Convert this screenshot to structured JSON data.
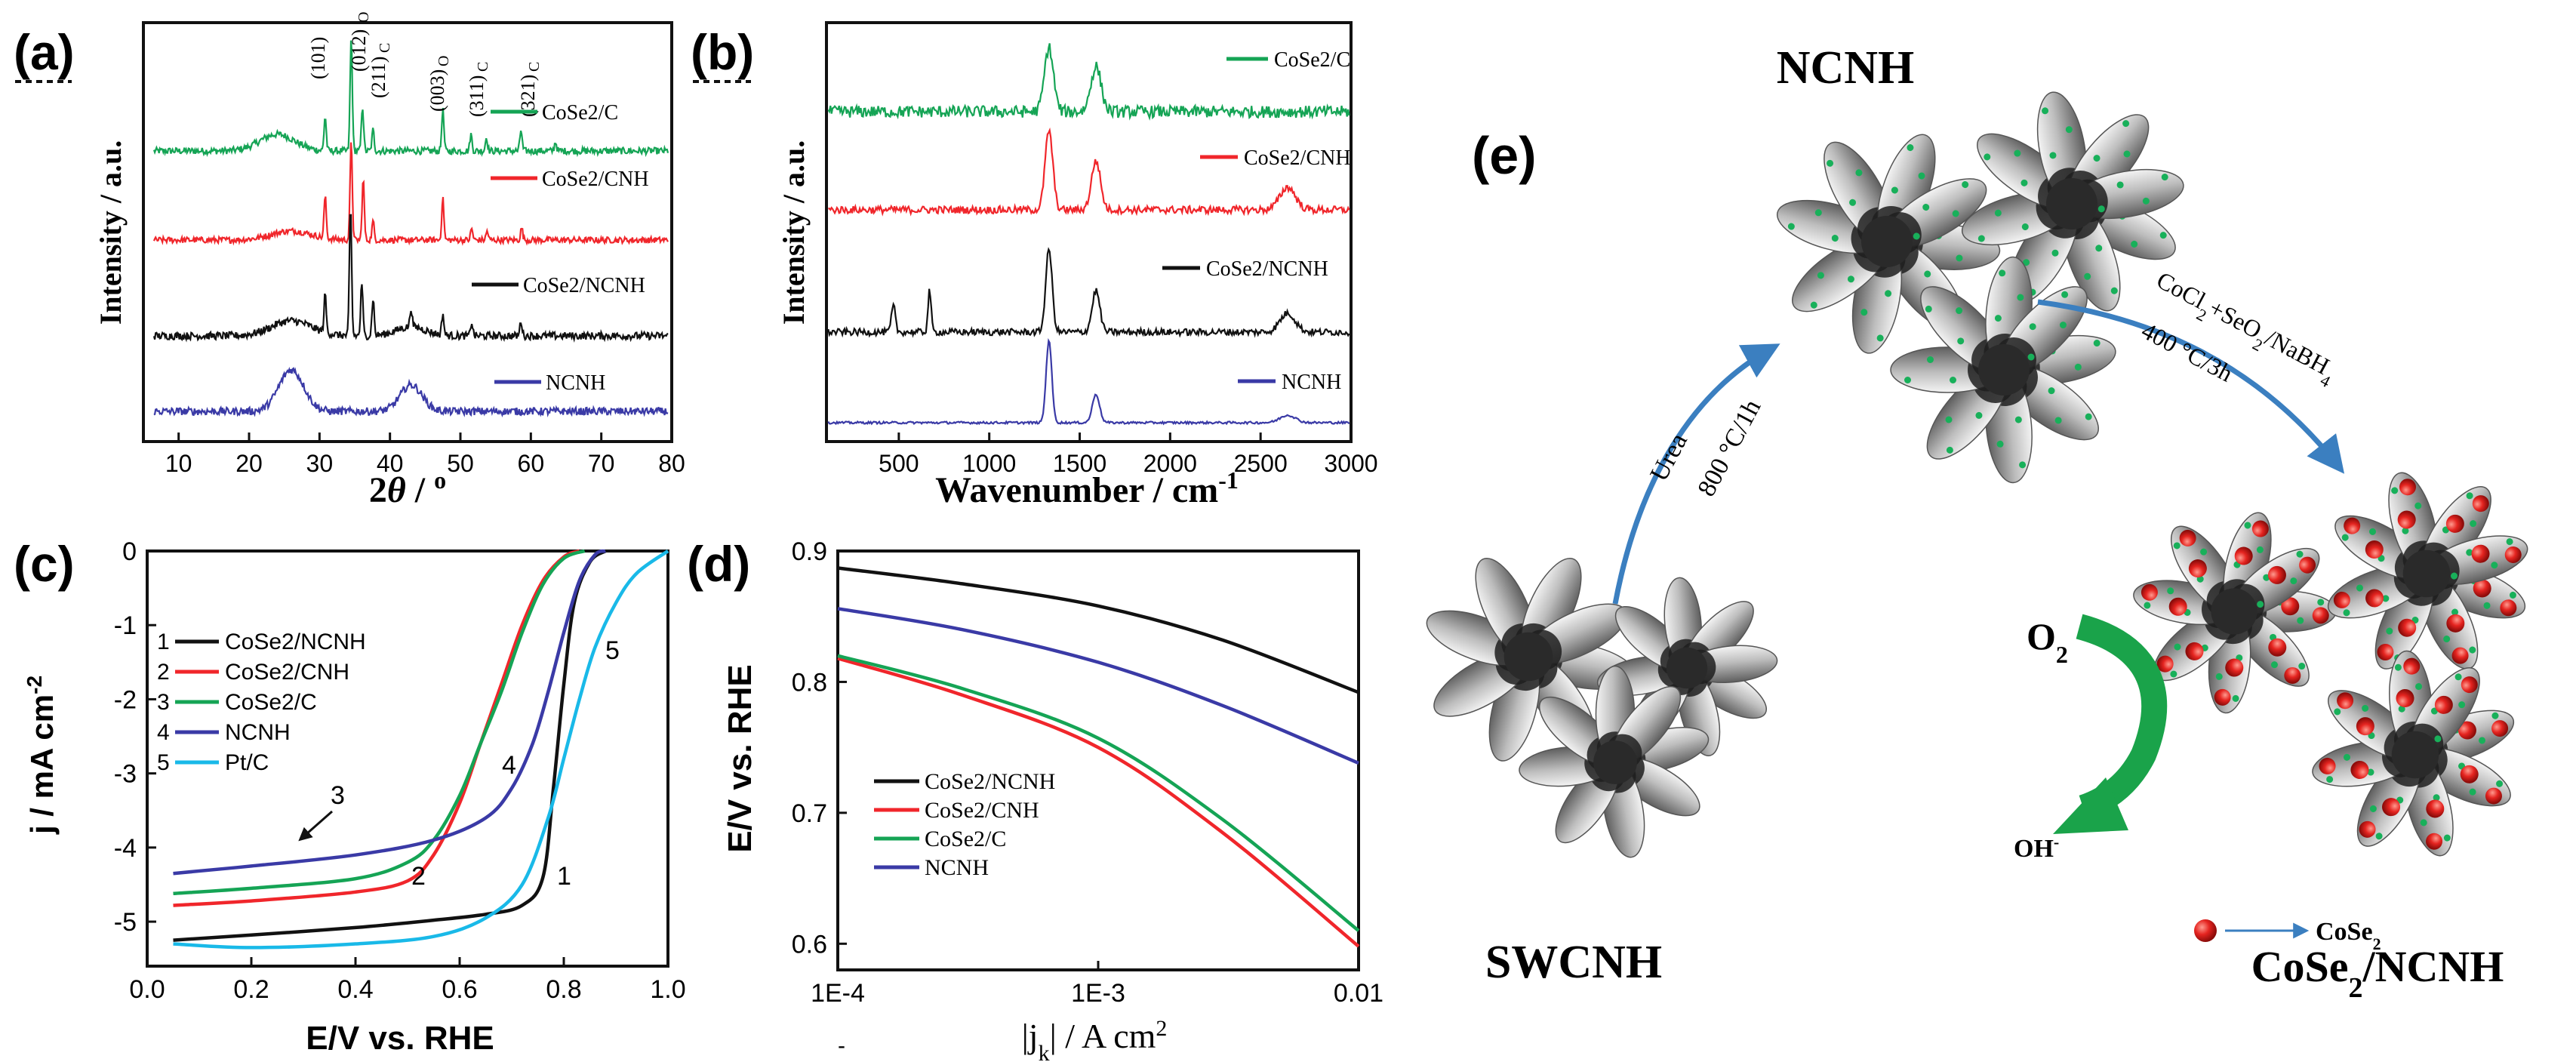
{
  "panel_labels": {
    "a": "(a)",
    "b": "(b)",
    "c": "(c)",
    "d": "(d)",
    "e": "(e)"
  },
  "colors": {
    "green": "#15a455",
    "red": "#f0262b",
    "black": "#111111",
    "blue": "#3a3aa6",
    "cyan": "#19b9e8",
    "arrow_blue": "#3b7fc0",
    "arrow_green": "#1aa34a",
    "dot_red": "#e52420",
    "dot_green": "#18b05a"
  },
  "chart_data": [
    {
      "id": "a",
      "type": "line",
      "title": "",
      "xlabel": "2θ / °",
      "ylabel": "Intensity / a.u.",
      "xlim": [
        5,
        80
      ],
      "xticks": [
        "10",
        "20",
        "30",
        "40",
        "50",
        "60",
        "70",
        "80"
      ],
      "grid": false,
      "series": [
        {
          "name": "CoSe2/C",
          "color": "green"
        },
        {
          "name": "CoSe2/CNH",
          "color": "red"
        },
        {
          "name": "CoSe2/NCNH",
          "color": "black"
        },
        {
          "name": "NCNH",
          "color": "blue"
        }
      ],
      "peak_labels": [
        "(101)",
        "(012)",
        "(211)",
        "(003)",
        "(311)",
        "(321)"
      ],
      "peak_subscripts": [
        "O",
        "C",
        "O",
        "C",
        "C"
      ],
      "legend_labels": [
        "CoSe2/C",
        "CoSe2/CNH",
        "CoSe2/NCNH",
        "NCNH"
      ]
    },
    {
      "id": "b",
      "type": "line",
      "xlabel": "Wavenumber / cm-1",
      "ylabel": "Intensity / a.u.",
      "xlim": [
        100,
        3000
      ],
      "xticks": [
        "500",
        "1000",
        "1500",
        "2000",
        "2500",
        "3000"
      ],
      "grid": false,
      "series": [
        {
          "name": "CoSe2/C",
          "color": "green"
        },
        {
          "name": "CoSe2/CNH",
          "color": "red"
        },
        {
          "name": "CoSe2/NCNH",
          "color": "black"
        },
        {
          "name": "NCNH",
          "color": "blue"
        }
      ],
      "legend_labels": [
        "CoSe2/C",
        "CoSe2/CNH",
        "CoSe2/NCNH",
        "NCNH"
      ]
    },
    {
      "id": "c",
      "type": "line",
      "xlabel": "E/V vs. RHE",
      "ylabel": "j / mA cm-2",
      "xlim": [
        0.0,
        1.0
      ],
      "ylim": [
        -5.6,
        0
      ],
      "xticks": [
        "0.0",
        "0.2",
        "0.4",
        "0.6",
        "0.8",
        "1.0"
      ],
      "yticks": [
        "0",
        "-1",
        "-2",
        "-3",
        "-4",
        "-5"
      ],
      "grid": false,
      "series": [
        {
          "name": "CoSe2/NCNH",
          "color": "black",
          "x": [
            0.05,
            0.2,
            0.4,
            0.55,
            0.65,
            0.72,
            0.76,
            0.78,
            0.8,
            0.82,
            0.85,
            0.88
          ],
          "y": [
            -5.25,
            -5.18,
            -5.08,
            -4.98,
            -4.9,
            -4.78,
            -4.4,
            -3.2,
            -1.8,
            -0.7,
            -0.15,
            0
          ]
        },
        {
          "name": "CoSe2/CNH",
          "color": "red",
          "x": [
            0.05,
            0.2,
            0.4,
            0.5,
            0.55,
            0.6,
            0.64,
            0.68,
            0.72,
            0.76,
            0.8,
            0.83
          ],
          "y": [
            -4.78,
            -4.72,
            -4.6,
            -4.45,
            -4.1,
            -3.4,
            -2.6,
            -1.8,
            -1.0,
            -0.4,
            -0.08,
            0
          ]
        },
        {
          "name": "CoSe2/C",
          "color": "green",
          "x": [
            0.05,
            0.2,
            0.4,
            0.5,
            0.55,
            0.6,
            0.64,
            0.68,
            0.72,
            0.76,
            0.8,
            0.84
          ],
          "y": [
            -4.62,
            -4.55,
            -4.42,
            -4.2,
            -3.9,
            -3.3,
            -2.6,
            -1.9,
            -1.1,
            -0.45,
            -0.1,
            0
          ]
        },
        {
          "name": "NCNH",
          "color": "blue",
          "x": [
            0.05,
            0.2,
            0.4,
            0.55,
            0.65,
            0.7,
            0.74,
            0.77,
            0.8,
            0.83,
            0.86,
            0.88
          ],
          "y": [
            -4.35,
            -4.25,
            -4.1,
            -3.9,
            -3.6,
            -3.2,
            -2.6,
            -1.9,
            -1.1,
            -0.4,
            -0.05,
            0
          ]
        },
        {
          "name": "Pt/C",
          "color": "cyan",
          "x": [
            0.05,
            0.2,
            0.4,
            0.55,
            0.65,
            0.72,
            0.77,
            0.8,
            0.83,
            0.86,
            0.9,
            0.94,
            1.0
          ],
          "y": [
            -5.3,
            -5.35,
            -5.3,
            -5.2,
            -4.95,
            -4.5,
            -3.6,
            -2.8,
            -2.0,
            -1.3,
            -0.7,
            -0.3,
            0
          ]
        }
      ],
      "legend_entries": [
        {
          "num": "1",
          "label": "CoSe2/NCNH",
          "color": "black"
        },
        {
          "num": "2",
          "label": "CoSe2/CNH",
          "color": "red"
        },
        {
          "num": "3",
          "label": "CoSe2/C",
          "color": "green"
        },
        {
          "num": "4",
          "label": "NCNH",
          "color": "blue"
        },
        {
          "num": "5",
          "label": "Pt/C",
          "color": "cyan"
        }
      ],
      "curve_labels": [
        "1",
        "2",
        "3",
        "4",
        "5"
      ]
    },
    {
      "id": "d",
      "type": "line",
      "xlabel": "|jk| / A cm2",
      "ylabel": "E/V vs. RHE",
      "xscale": "log",
      "xlim": [
        0.0001,
        0.01
      ],
      "ylim": [
        0.58,
        0.9
      ],
      "xticks": [
        "1E-4",
        "1E-3",
        "0.01"
      ],
      "yticks": [
        "0.9",
        "0.8",
        "0.7",
        "0.6"
      ],
      "grid": false,
      "series": [
        {
          "name": "CoSe2/NCNH",
          "color": "black",
          "x": [
            0.0001,
            0.0003,
            0.001,
            0.003,
            0.01
          ],
          "y": [
            0.887,
            0.875,
            0.858,
            0.832,
            0.792
          ]
        },
        {
          "name": "CoSe2/CNH",
          "color": "red",
          "x": [
            0.0001,
            0.0003,
            0.001,
            0.003,
            0.01
          ],
          "y": [
            0.818,
            0.79,
            0.75,
            0.685,
            0.598
          ]
        },
        {
          "name": "CoSe2/C",
          "color": "green",
          "x": [
            0.0001,
            0.0003,
            0.001,
            0.003,
            0.01
          ],
          "y": [
            0.82,
            0.795,
            0.757,
            0.695,
            0.61
          ]
        },
        {
          "name": "NCNH",
          "color": "blue",
          "x": [
            0.0001,
            0.0003,
            0.001,
            0.003,
            0.01
          ],
          "y": [
            0.856,
            0.84,
            0.815,
            0.782,
            0.738
          ]
        }
      ],
      "legend_labels": [
        "CoSe2/NCNH",
        "CoSe2/CNH",
        "CoSe2/C",
        "NCNH"
      ]
    }
  ],
  "schematic": {
    "labels": {
      "ncnh": "NCNH",
      "swcnh": "SWCNH",
      "product": "CoSe2/NCNH",
      "o2": "O2",
      "oh": "OH-",
      "cose2": "CoSe2"
    },
    "step1": {
      "reagent": "Urea",
      "condition": "800 °C/1h"
    },
    "step2": {
      "reagent": "CoCl2+SeO2/NaBH4",
      "condition": "400 °C/3h"
    }
  }
}
